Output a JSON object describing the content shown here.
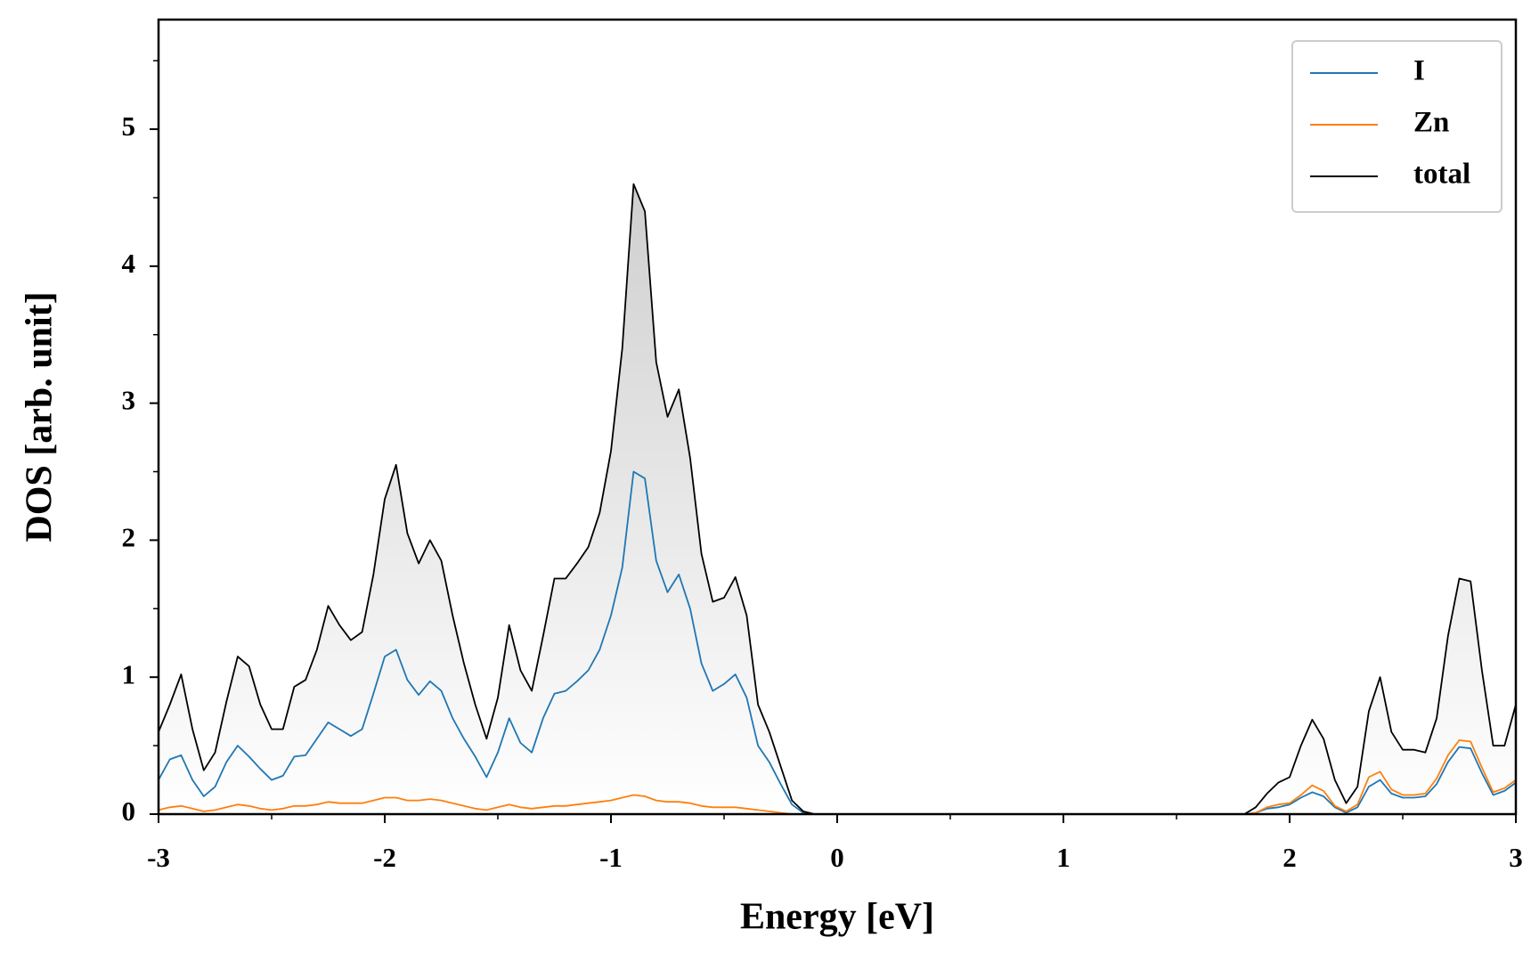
{
  "chart_data": {
    "type": "line",
    "xlabel": "Energy [eV]",
    "ylabel": "DOS [arb. unit]",
    "x": [
      -3.0,
      -2.95,
      -2.9,
      -2.85,
      -2.8,
      -2.75,
      -2.7,
      -2.65,
      -2.6,
      -2.55,
      -2.5,
      -2.45,
      -2.4,
      -2.35,
      -2.3,
      -2.25,
      -2.2,
      -2.15,
      -2.1,
      -2.05,
      -2.0,
      -1.95,
      -1.9,
      -1.85,
      -1.8,
      -1.75,
      -1.7,
      -1.65,
      -1.6,
      -1.55,
      -1.5,
      -1.45,
      -1.4,
      -1.35,
      -1.3,
      -1.25,
      -1.2,
      -1.15,
      -1.1,
      -1.05,
      -1.0,
      -0.95,
      -0.9,
      -0.85,
      -0.8,
      -0.75,
      -0.7,
      -0.65,
      -0.6,
      -0.55,
      -0.5,
      -0.45,
      -0.4,
      -0.35,
      -0.3,
      -0.25,
      -0.2,
      -0.15,
      -0.1,
      -0.05,
      0.0,
      0.05,
      0.1,
      0.15,
      0.2,
      0.25,
      0.3,
      0.35,
      0.4,
      0.45,
      0.5,
      0.55,
      0.6,
      0.65,
      0.7,
      0.75,
      0.8,
      0.85,
      0.9,
      0.95,
      1.0,
      1.05,
      1.1,
      1.15,
      1.2,
      1.25,
      1.3,
      1.35,
      1.4,
      1.45,
      1.5,
      1.55,
      1.6,
      1.65,
      1.7,
      1.75,
      1.8,
      1.85,
      1.9,
      1.95,
      2.0,
      2.05,
      2.1,
      2.15,
      2.2,
      2.25,
      2.3,
      2.35,
      2.4,
      2.45,
      2.5,
      2.55,
      2.6,
      2.65,
      2.7,
      2.75,
      2.8,
      2.85,
      2.9,
      2.95,
      3.0
    ],
    "series": [
      {
        "name": "I",
        "color": "#1f77b4",
        "fill": "#5b8db8",
        "values": [
          0.25,
          0.4,
          0.43,
          0.25,
          0.13,
          0.2,
          0.38,
          0.5,
          0.42,
          0.33,
          0.25,
          0.28,
          0.42,
          0.43,
          0.55,
          0.67,
          0.62,
          0.57,
          0.62,
          0.88,
          1.15,
          1.2,
          0.98,
          0.87,
          0.97,
          0.9,
          0.7,
          0.55,
          0.42,
          0.27,
          0.45,
          0.7,
          0.52,
          0.45,
          0.7,
          0.88,
          0.9,
          0.97,
          1.05,
          1.2,
          1.45,
          1.8,
          2.5,
          2.45,
          1.85,
          1.62,
          1.75,
          1.5,
          1.1,
          0.9,
          0.95,
          1.02,
          0.85,
          0.5,
          0.38,
          0.22,
          0.07,
          0.01,
          0,
          0,
          0,
          0,
          0,
          0,
          0,
          0,
          0,
          0,
          0,
          0,
          0,
          0,
          0,
          0,
          0,
          0,
          0,
          0,
          0,
          0,
          0,
          0,
          0,
          0,
          0,
          0,
          0,
          0,
          0,
          0,
          0,
          0,
          0,
          0,
          0,
          0,
          0,
          0.01,
          0.04,
          0.05,
          0.07,
          0.12,
          0.16,
          0.13,
          0.05,
          0.01,
          0.05,
          0.2,
          0.25,
          0.15,
          0.12,
          0.12,
          0.13,
          0.22,
          0.38,
          0.49,
          0.48,
          0.3,
          0.14,
          0.17,
          0.23
        ]
      },
      {
        "name": "Zn",
        "color": "#ff7f0e",
        "values": [
          0.03,
          0.05,
          0.06,
          0.04,
          0.02,
          0.03,
          0.05,
          0.07,
          0.06,
          0.04,
          0.03,
          0.04,
          0.06,
          0.06,
          0.07,
          0.09,
          0.08,
          0.08,
          0.08,
          0.1,
          0.12,
          0.12,
          0.1,
          0.1,
          0.11,
          0.1,
          0.08,
          0.06,
          0.04,
          0.03,
          0.05,
          0.07,
          0.05,
          0.04,
          0.05,
          0.06,
          0.06,
          0.07,
          0.08,
          0.09,
          0.1,
          0.12,
          0.14,
          0.13,
          0.1,
          0.09,
          0.09,
          0.08,
          0.06,
          0.05,
          0.05,
          0.05,
          0.04,
          0.03,
          0.02,
          0.01,
          0,
          0,
          0,
          0,
          0,
          0,
          0,
          0,
          0,
          0,
          0,
          0,
          0,
          0,
          0,
          0,
          0,
          0,
          0,
          0,
          0,
          0,
          0,
          0,
          0,
          0,
          0,
          0,
          0,
          0,
          0,
          0,
          0,
          0,
          0,
          0,
          0,
          0,
          0,
          0,
          0,
          0.01,
          0.05,
          0.07,
          0.08,
          0.14,
          0.21,
          0.17,
          0.06,
          0.02,
          0.07,
          0.27,
          0.31,
          0.18,
          0.14,
          0.14,
          0.15,
          0.26,
          0.43,
          0.54,
          0.53,
          0.34,
          0.16,
          0.19,
          0.25
        ]
      },
      {
        "name": "total",
        "color": "#000000",
        "fill": "#d0d0d0",
        "values": [
          0.6,
          0.8,
          1.02,
          0.62,
          0.32,
          0.45,
          0.82,
          1.15,
          1.08,
          0.8,
          0.62,
          0.62,
          0.93,
          0.98,
          1.2,
          1.52,
          1.38,
          1.27,
          1.33,
          1.75,
          2.3,
          2.55,
          2.05,
          1.83,
          2.0,
          1.85,
          1.45,
          1.1,
          0.8,
          0.55,
          0.85,
          1.38,
          1.05,
          0.9,
          1.3,
          1.72,
          1.72,
          1.83,
          1.95,
          2.2,
          2.65,
          3.4,
          4.6,
          4.4,
          3.3,
          2.9,
          3.1,
          2.6,
          1.9,
          1.55,
          1.58,
          1.73,
          1.45,
          0.8,
          0.6,
          0.35,
          0.1,
          0.02,
          0,
          0,
          0,
          0,
          0,
          0,
          0,
          0,
          0,
          0,
          0,
          0,
          0,
          0,
          0,
          0,
          0,
          0,
          0,
          0,
          0,
          0,
          0,
          0,
          0,
          0,
          0,
          0,
          0,
          0,
          0,
          0,
          0,
          0,
          0,
          0,
          0,
          0,
          0,
          0.05,
          0.15,
          0.23,
          0.27,
          0.5,
          0.69,
          0.55,
          0.25,
          0.08,
          0.2,
          0.75,
          1.0,
          0.6,
          0.47,
          0.47,
          0.45,
          0.7,
          1.3,
          1.72,
          1.7,
          1.05,
          0.5,
          0.5,
          0.8
        ]
      }
    ],
    "xlim": [
      -3,
      3
    ],
    "xticks": [
      -3,
      -2,
      -1,
      0,
      1,
      2,
      3
    ],
    "ylim": [
      0,
      5.8
    ],
    "yticks": [
      0,
      1,
      2,
      3,
      4,
      5
    ],
    "minor_ticks": true,
    "legend": "upper right"
  }
}
